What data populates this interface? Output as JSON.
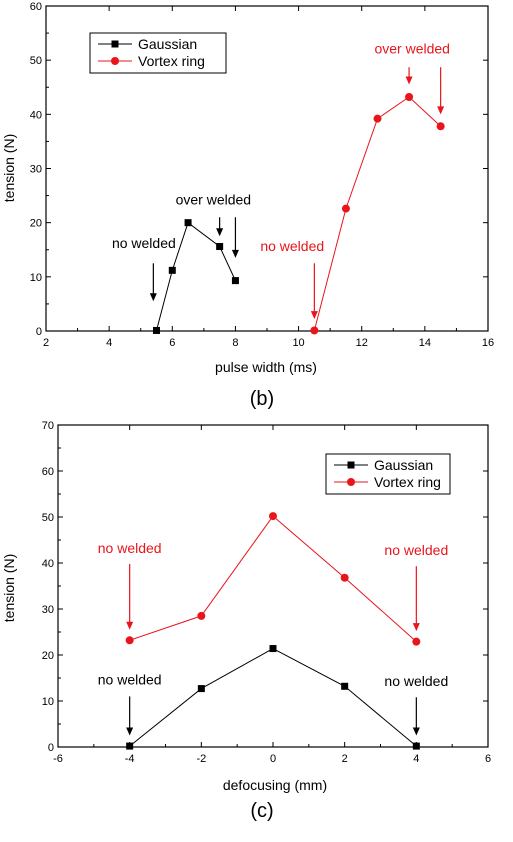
{
  "chart_data": [
    {
      "type": "line",
      "panel_label": "(b)",
      "xlabel": "pulse width (ms)",
      "ylabel": "tension (N)",
      "xlim": [
        2,
        16
      ],
      "ylim": [
        0,
        60
      ],
      "xticks": [
        2,
        4,
        6,
        8,
        10,
        12,
        14,
        16
      ],
      "yticks": [
        0,
        10,
        20,
        30,
        40,
        50,
        60
      ],
      "grid": false,
      "legend_position": "top-left",
      "series": [
        {
          "name": "Gaussian",
          "color": "#000000",
          "marker": "square",
          "x": [
            5.5,
            6.0,
            6.5,
            7.5,
            8.0
          ],
          "y": [
            0.1,
            11.2,
            20.0,
            15.6,
            9.3
          ]
        },
        {
          "name": "Vortex ring",
          "color": "#e8151b",
          "marker": "circle",
          "x": [
            10.5,
            11.5,
            12.5,
            13.5,
            14.5
          ],
          "y": [
            0.1,
            22.6,
            39.2,
            43.2,
            37.8
          ]
        }
      ],
      "annotations": [
        {
          "text": "no welded",
          "color": "#000000",
          "text_x": 5.1,
          "text_y": 15.3,
          "arrows": [
            {
              "x": 5.4,
              "y_from": 12.5,
              "y_to": 5.5
            }
          ]
        },
        {
          "text": "over welded",
          "color": "#000000",
          "text_x": 7.3,
          "text_y": 23.4,
          "arrows": [
            {
              "x": 7.5,
              "y_from": 21.0,
              "y_to": 17.5
            },
            {
              "x": 8.0,
              "y_from": 21.0,
              "y_to": 13.5
            }
          ]
        },
        {
          "text": "no welded",
          "color": "#e8151b",
          "text_x": 9.8,
          "text_y": 14.8,
          "arrows": [
            {
              "x": 10.5,
              "y_from": 12.5,
              "y_to": 2.2
            }
          ]
        },
        {
          "text": "over welded",
          "color": "#e8151b",
          "text_x": 13.6,
          "text_y": 51.2,
          "arrows": [
            {
              "x": 13.5,
              "y_from": 48.7,
              "y_to": 45.5
            },
            {
              "x": 14.5,
              "y_from": 48.7,
              "y_to": 40.0
            }
          ]
        }
      ]
    },
    {
      "type": "line",
      "panel_label": "(c)",
      "xlabel": "defocusing (mm)",
      "ylabel": "tension (N)",
      "xlim": [
        -6,
        6
      ],
      "ylim": [
        0,
        70
      ],
      "xticks": [
        -6,
        -4,
        -2,
        0,
        2,
        4,
        6
      ],
      "yticks": [
        0,
        10,
        20,
        30,
        40,
        50,
        60,
        70
      ],
      "grid": false,
      "legend_position": "top-right",
      "series": [
        {
          "name": "Gaussian",
          "color": "#000000",
          "marker": "square",
          "x": [
            -4,
            -2,
            0,
            2,
            4
          ],
          "y": [
            0.2,
            12.7,
            21.4,
            13.2,
            0.2
          ]
        },
        {
          "name": "Vortex ring",
          "color": "#e8151b",
          "marker": "circle",
          "x": [
            -4,
            -2,
            0,
            2,
            4
          ],
          "y": [
            23.2,
            28.5,
            50.2,
            36.8,
            22.9
          ]
        }
      ],
      "annotations": [
        {
          "text": "no welded",
          "color": "#e8151b",
          "text_x": -4.0,
          "text_y": 42.2,
          "arrows": [
            {
              "x": -4.0,
              "y_from": 39.8,
              "y_to": 25.5
            }
          ]
        },
        {
          "text": "no welded",
          "color": "#e8151b",
          "text_x": 4.0,
          "text_y": 41.7,
          "arrows": [
            {
              "x": 4.0,
              "y_from": 39.3,
              "y_to": 25.2
            }
          ]
        },
        {
          "text": "no welded",
          "color": "#000000",
          "text_x": -4.0,
          "text_y": 13.6,
          "arrows": [
            {
              "x": -4.0,
              "y_from": 11.0,
              "y_to": 2.5
            }
          ]
        },
        {
          "text": "no welded",
          "color": "#000000",
          "text_x": 4.0,
          "text_y": 13.3,
          "arrows": [
            {
              "x": 4.0,
              "y_from": 10.8,
              "y_to": 2.5
            }
          ]
        }
      ]
    }
  ]
}
